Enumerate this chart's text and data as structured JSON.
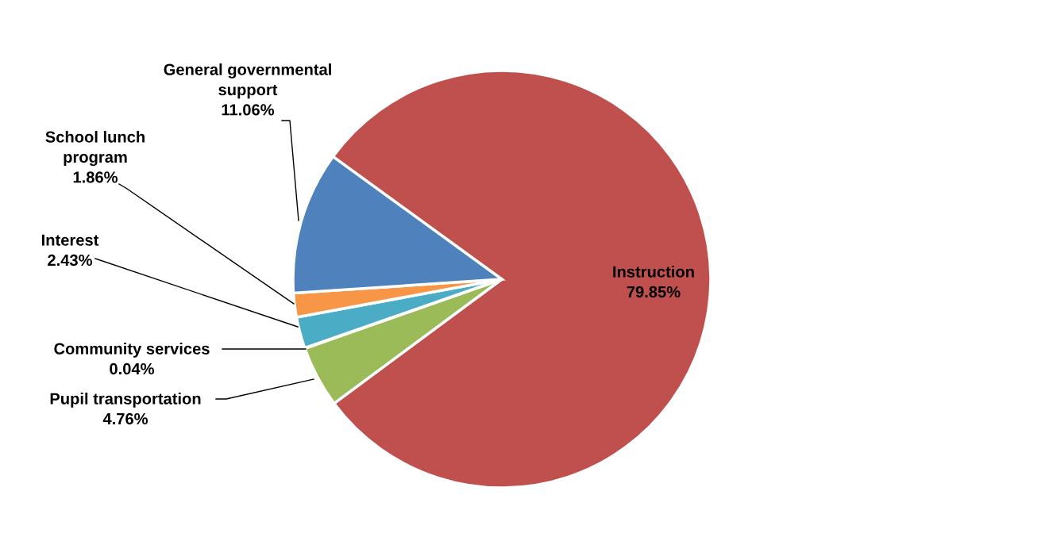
{
  "chart_data": {
    "type": "pie",
    "categories": [
      "Instruction",
      "Pupil transportation",
      "Community services",
      "Interest",
      "School lunch\nprogram",
      "General governmental\nsupport"
    ],
    "values": [
      79.85,
      4.76,
      0.04,
      2.43,
      1.86,
      11.06
    ],
    "colors": [
      "#c0504d",
      "#9bbb59",
      "#8064a2",
      "#4bacc6",
      "#f79646",
      "#4f81bd"
    ],
    "value_labels": [
      "79.85%",
      "4.76%",
      "0.04%",
      "2.43%",
      "1.86%",
      "11.06%"
    ],
    "legend": false
  }
}
